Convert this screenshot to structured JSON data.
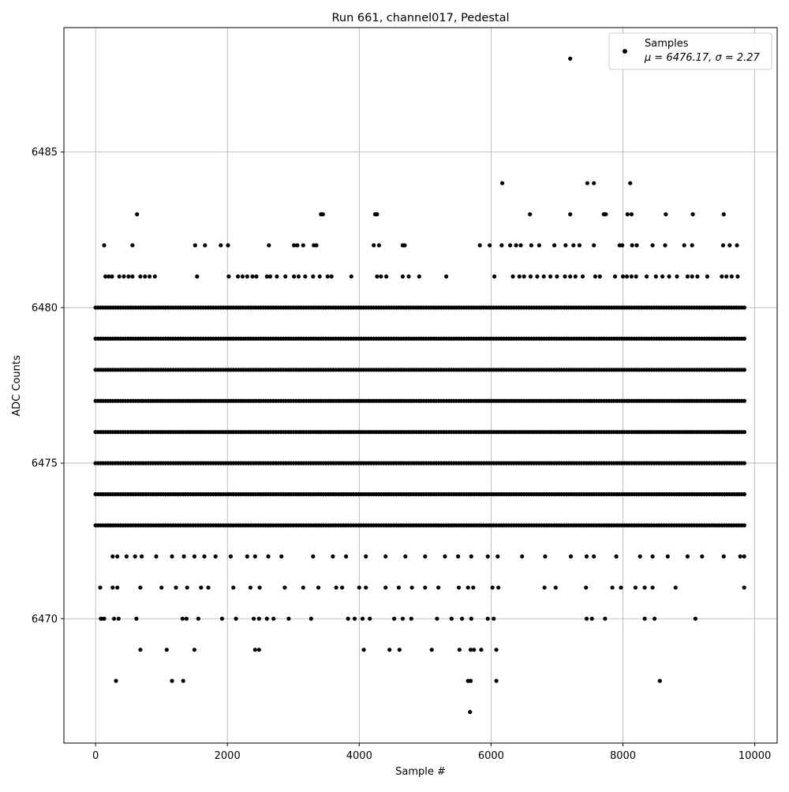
{
  "chart_data": {
    "type": "scatter",
    "title": "Run 661, channel017, Pedestal",
    "xlabel": "Sample #",
    "ylabel": "ADC Counts",
    "xlim": [
      -480,
      10340
    ],
    "ylim": [
      6466.0,
      6489.0
    ],
    "x_ticks": [
      0,
      2000,
      4000,
      6000,
      8000,
      10000
    ],
    "x_tick_labels": [
      "0",
      "2000",
      "4000",
      "6000",
      "8000",
      "10000"
    ],
    "y_ticks": [
      6470,
      6475,
      6480,
      6485
    ],
    "y_tick_labels": [
      "6470",
      "6475",
      "6480",
      "6485"
    ],
    "grid": true,
    "legend": {
      "placement": "top-right",
      "series_name": "Samples",
      "stats_text": "μ = 6476.17, σ = 2.27"
    },
    "marker_color": "#000000",
    "sample_range": [
      0,
      9850
    ],
    "series": [
      {
        "name": "Samples",
        "level_ranges": [
          {
            "y": 6473,
            "ranges": [
              [
                0,
                9850
              ]
            ]
          },
          {
            "y": 6474,
            "ranges": [
              [
                0,
                9850
              ]
            ]
          },
          {
            "y": 6475,
            "ranges": [
              [
                0,
                9850
              ]
            ]
          },
          {
            "y": 6476,
            "ranges": [
              [
                0,
                9850
              ]
            ]
          },
          {
            "y": 6477,
            "ranges": [
              [
                0,
                9850
              ]
            ]
          },
          {
            "y": 6478,
            "ranges": [
              [
                0,
                9850
              ]
            ]
          },
          {
            "y": 6479,
            "ranges": [
              [
                0,
                9850
              ]
            ]
          },
          {
            "y": 6480,
            "ranges": [
              [
                0,
                9850
              ]
            ]
          }
        ],
        "points": [
          [
            80,
            6470
          ],
          [
            90,
            6470
          ],
          [
            130,
            6470
          ],
          [
            280,
            6470
          ],
          [
            350,
            6470
          ],
          [
            620,
            6470
          ],
          [
            1320,
            6470
          ],
          [
            1380,
            6470
          ],
          [
            1560,
            6470
          ],
          [
            1920,
            6470
          ],
          [
            2130,
            6470
          ],
          [
            2400,
            6470
          ],
          [
            2480,
            6470
          ],
          [
            2600,
            6470
          ],
          [
            2700,
            6470
          ],
          [
            2930,
            6470
          ],
          [
            3270,
            6470
          ],
          [
            3830,
            6470
          ],
          [
            3930,
            6470
          ],
          [
            4050,
            6470
          ],
          [
            4160,
            6470
          ],
          [
            4530,
            6470
          ],
          [
            4660,
            6470
          ],
          [
            4790,
            6470
          ],
          [
            5180,
            6470
          ],
          [
            5400,
            6470
          ],
          [
            5560,
            6470
          ],
          [
            5700,
            6470
          ],
          [
            5950,
            6470
          ],
          [
            6040,
            6470
          ],
          [
            7450,
            6470
          ],
          [
            7530,
            6470
          ],
          [
            7730,
            6470
          ],
          [
            8330,
            6470
          ],
          [
            8480,
            6470
          ],
          [
            9100,
            6470
          ],
          [
            70,
            6471
          ],
          [
            260,
            6471
          ],
          [
            330,
            6471
          ],
          [
            680,
            6471
          ],
          [
            1000,
            6471
          ],
          [
            1220,
            6471
          ],
          [
            1390,
            6471
          ],
          [
            1600,
            6471
          ],
          [
            1710,
            6471
          ],
          [
            2090,
            6471
          ],
          [
            2350,
            6471
          ],
          [
            2490,
            6471
          ],
          [
            2870,
            6471
          ],
          [
            3150,
            6471
          ],
          [
            3380,
            6471
          ],
          [
            3650,
            6471
          ],
          [
            3740,
            6471
          ],
          [
            4000,
            6471
          ],
          [
            4100,
            6471
          ],
          [
            4400,
            6471
          ],
          [
            4600,
            6471
          ],
          [
            4800,
            6471
          ],
          [
            5000,
            6471
          ],
          [
            5200,
            6471
          ],
          [
            5510,
            6471
          ],
          [
            5650,
            6471
          ],
          [
            5730,
            6471
          ],
          [
            6020,
            6471
          ],
          [
            6110,
            6471
          ],
          [
            6810,
            6471
          ],
          [
            6980,
            6471
          ],
          [
            7440,
            6471
          ],
          [
            7840,
            6471
          ],
          [
            7970,
            6471
          ],
          [
            8190,
            6471
          ],
          [
            8330,
            6471
          ],
          [
            8450,
            6471
          ],
          [
            8800,
            6471
          ],
          [
            9840,
            6471
          ],
          [
            260,
            6472
          ],
          [
            330,
            6472
          ],
          [
            470,
            6472
          ],
          [
            600,
            6472
          ],
          [
            700,
            6472
          ],
          [
            920,
            6472
          ],
          [
            1160,
            6472
          ],
          [
            1340,
            6472
          ],
          [
            1500,
            6472
          ],
          [
            1650,
            6472
          ],
          [
            1820,
            6472
          ],
          [
            2050,
            6472
          ],
          [
            2300,
            6472
          ],
          [
            2420,
            6472
          ],
          [
            2620,
            6472
          ],
          [
            2820,
            6472
          ],
          [
            3300,
            6472
          ],
          [
            3600,
            6472
          ],
          [
            3800,
            6472
          ],
          [
            4100,
            6472
          ],
          [
            4400,
            6472
          ],
          [
            4700,
            6472
          ],
          [
            5000,
            6472
          ],
          [
            5300,
            6472
          ],
          [
            5500,
            6472
          ],
          [
            5700,
            6472
          ],
          [
            5950,
            6472
          ],
          [
            6100,
            6472
          ],
          [
            6470,
            6472
          ],
          [
            6820,
            6472
          ],
          [
            7210,
            6472
          ],
          [
            7450,
            6472
          ],
          [
            7560,
            6472
          ],
          [
            7900,
            6472
          ],
          [
            8260,
            6472
          ],
          [
            8450,
            6472
          ],
          [
            8680,
            6472
          ],
          [
            8980,
            6472
          ],
          [
            9200,
            6472
          ],
          [
            9530,
            6472
          ],
          [
            9780,
            6472
          ],
          [
            9840,
            6472
          ],
          [
            680,
            6469
          ],
          [
            1080,
            6469
          ],
          [
            1500,
            6469
          ],
          [
            2420,
            6469
          ],
          [
            2480,
            6469
          ],
          [
            4070,
            6469
          ],
          [
            4460,
            6469
          ],
          [
            4610,
            6469
          ],
          [
            5100,
            6469
          ],
          [
            5520,
            6469
          ],
          [
            5690,
            6469
          ],
          [
            5740,
            6469
          ],
          [
            5850,
            6469
          ],
          [
            6080,
            6469
          ],
          [
            310,
            6468
          ],
          [
            1160,
            6468
          ],
          [
            1330,
            6468
          ],
          [
            5650,
            6468
          ],
          [
            5690,
            6468
          ],
          [
            6080,
            6468
          ],
          [
            8560,
            6468
          ],
          [
            5680,
            6467
          ],
          [
            7200,
            6488
          ],
          [
            6170,
            6484
          ],
          [
            7460,
            6484
          ],
          [
            7560,
            6484
          ],
          [
            8110,
            6484
          ],
          [
            630,
            6483
          ],
          [
            3420,
            6483
          ],
          [
            3450,
            6483
          ],
          [
            4240,
            6483
          ],
          [
            4270,
            6483
          ],
          [
            6590,
            6483
          ],
          [
            7200,
            6483
          ],
          [
            7710,
            6483
          ],
          [
            7740,
            6483
          ],
          [
            8070,
            6483
          ],
          [
            8130,
            6483
          ],
          [
            8650,
            6483
          ],
          [
            9060,
            6483
          ],
          [
            9530,
            6483
          ],
          [
            130,
            6482
          ],
          [
            560,
            6482
          ],
          [
            1510,
            6482
          ],
          [
            1660,
            6482
          ],
          [
            1900,
            6482
          ],
          [
            2010,
            6482
          ],
          [
            2630,
            6482
          ],
          [
            3010,
            6482
          ],
          [
            3060,
            6482
          ],
          [
            3150,
            6482
          ],
          [
            3310,
            6482
          ],
          [
            3350,
            6482
          ],
          [
            4220,
            6482
          ],
          [
            4300,
            6482
          ],
          [
            4660,
            6482
          ],
          [
            4690,
            6482
          ],
          [
            5830,
            6482
          ],
          [
            5980,
            6482
          ],
          [
            6160,
            6482
          ],
          [
            6290,
            6482
          ],
          [
            6380,
            6482
          ],
          [
            6450,
            6482
          ],
          [
            6610,
            6482
          ],
          [
            6730,
            6482
          ],
          [
            6960,
            6482
          ],
          [
            7130,
            6482
          ],
          [
            7250,
            6482
          ],
          [
            7340,
            6482
          ],
          [
            7560,
            6482
          ],
          [
            7950,
            6482
          ],
          [
            7990,
            6482
          ],
          [
            8140,
            6482
          ],
          [
            8210,
            6482
          ],
          [
            8450,
            6482
          ],
          [
            8640,
            6482
          ],
          [
            8930,
            6482
          ],
          [
            9050,
            6482
          ],
          [
            9520,
            6482
          ],
          [
            9620,
            6482
          ],
          [
            9730,
            6482
          ],
          [
            150,
            6481
          ],
          [
            200,
            6481
          ],
          [
            250,
            6481
          ],
          [
            360,
            6481
          ],
          [
            430,
            6481
          ],
          [
            500,
            6481
          ],
          [
            560,
            6481
          ],
          [
            680,
            6481
          ],
          [
            750,
            6481
          ],
          [
            820,
            6481
          ],
          [
            900,
            6481
          ],
          [
            1540,
            6481
          ],
          [
            2020,
            6481
          ],
          [
            2160,
            6481
          ],
          [
            2230,
            6481
          ],
          [
            2300,
            6481
          ],
          [
            2380,
            6481
          ],
          [
            2440,
            6481
          ],
          [
            2600,
            6481
          ],
          [
            2650,
            6481
          ],
          [
            2750,
            6481
          ],
          [
            2880,
            6481
          ],
          [
            3010,
            6481
          ],
          [
            3080,
            6481
          ],
          [
            3180,
            6481
          ],
          [
            3300,
            6481
          ],
          [
            3400,
            6481
          ],
          [
            3520,
            6481
          ],
          [
            3580,
            6481
          ],
          [
            3880,
            6481
          ],
          [
            4270,
            6481
          ],
          [
            4330,
            6481
          ],
          [
            4410,
            6481
          ],
          [
            4660,
            6481
          ],
          [
            4750,
            6481
          ],
          [
            4910,
            6481
          ],
          [
            5320,
            6481
          ],
          [
            6050,
            6481
          ],
          [
            6330,
            6481
          ],
          [
            6430,
            6481
          ],
          [
            6500,
            6481
          ],
          [
            6600,
            6481
          ],
          [
            6700,
            6481
          ],
          [
            6800,
            6481
          ],
          [
            6900,
            6481
          ],
          [
            7000,
            6481
          ],
          [
            7120,
            6481
          ],
          [
            7200,
            6481
          ],
          [
            7280,
            6481
          ],
          [
            7390,
            6481
          ],
          [
            7580,
            6481
          ],
          [
            7650,
            6481
          ],
          [
            7880,
            6481
          ],
          [
            8000,
            6481
          ],
          [
            8060,
            6481
          ],
          [
            8130,
            6481
          ],
          [
            8200,
            6481
          ],
          [
            8360,
            6481
          ],
          [
            8500,
            6481
          ],
          [
            8600,
            6481
          ],
          [
            8700,
            6481
          ],
          [
            8820,
            6481
          ],
          [
            8980,
            6481
          ],
          [
            9050,
            6481
          ],
          [
            9130,
            6481
          ],
          [
            9280,
            6481
          ],
          [
            9500,
            6481
          ],
          [
            9570,
            6481
          ],
          [
            9650,
            6481
          ],
          [
            9740,
            6481
          ]
        ]
      }
    ]
  }
}
